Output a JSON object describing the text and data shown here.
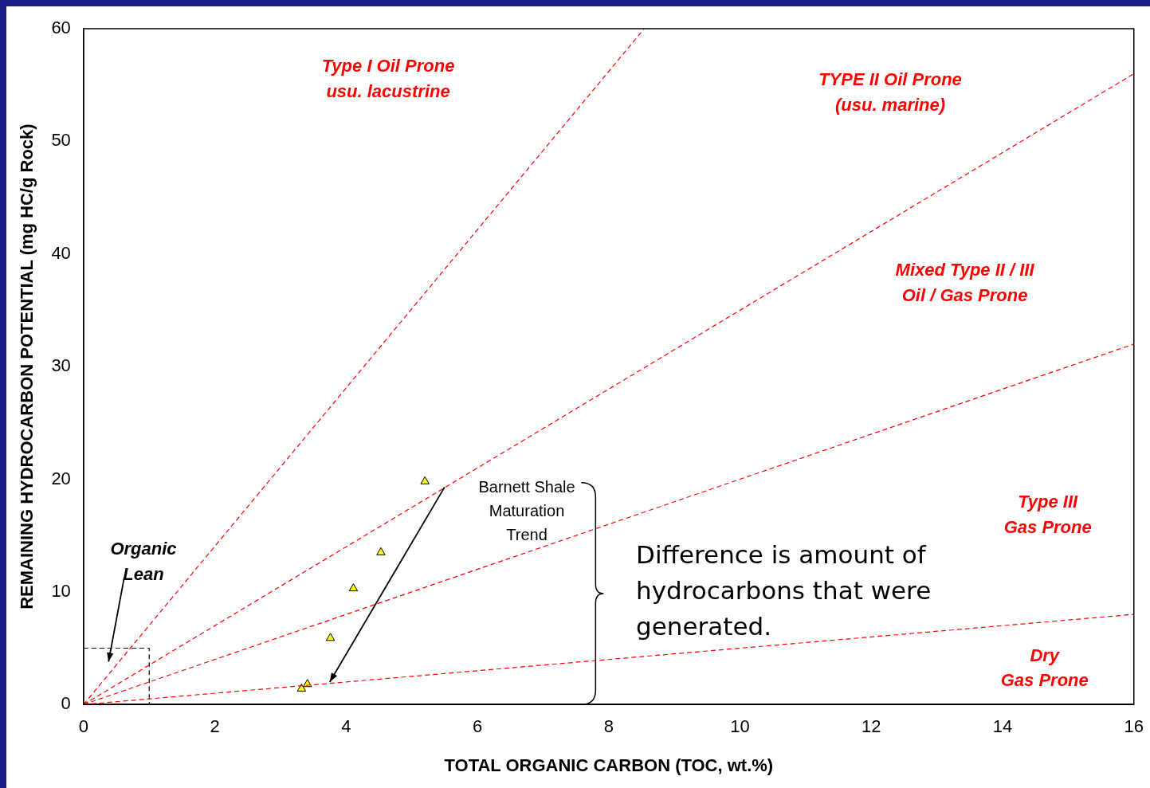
{
  "chart_data": {
    "type": "scatter",
    "xlabel": "TOTAL ORGANIC CARBON (TOC, wt.%)",
    "ylabel": "REMAINING HYDROCARBON POTENTIAL (mg HC/g Rock)",
    "xlim": [
      0,
      16
    ],
    "xticks": [
      0,
      2,
      4,
      6,
      8,
      10,
      12,
      14,
      16
    ],
    "ylim": [
      0,
      60
    ],
    "yticks": [
      0,
      10,
      20,
      30,
      40,
      50,
      60
    ],
    "grid": false,
    "legend": false,
    "series": [
      {
        "type": "line",
        "color": "#ff0000",
        "line_style": "dashed",
        "marker": "none",
        "x": [
          0,
          8.54
        ],
        "values": [
          0,
          60
        ]
      },
      {
        "type": "line",
        "color": "#ff0000",
        "line_style": "dashed",
        "marker": "none",
        "x": [
          0,
          16
        ],
        "values": [
          0,
          56
        ]
      },
      {
        "type": "line",
        "color": "#ff0000",
        "line_style": "dashed",
        "marker": "none",
        "x": [
          0,
          16
        ],
        "values": [
          0,
          32
        ]
      },
      {
        "type": "line",
        "color": "#ff0000",
        "line_style": "dashed",
        "marker": "none",
        "x": [
          0,
          16
        ],
        "values": [
          0,
          8
        ]
      },
      {
        "type": "line",
        "color": "#000000",
        "line_style": "dashed",
        "marker": "none",
        "x": [
          0,
          1,
          1
        ],
        "values": [
          5,
          5,
          0
        ]
      },
      {
        "color": "#ffff00",
        "marker": "triangle",
        "x": [
          5.2,
          4.53,
          4.11,
          3.76,
          3.41,
          3.32
        ],
        "values": [
          19.8,
          13.5,
          10.3,
          5.9,
          1.8,
          1.4
        ]
      }
    ],
    "annotations": [
      "Type I Oil Prone\nusu. lacustrine",
      "TYPE II Oil Prone\n(usu. marine)",
      "Mixed Type II / III\nOil / Gas Prone",
      "Type III\nGas Prone",
      "Dry\nGas Prone",
      "Organic\nLean",
      "Barnett Shale\nMaturation\nTrend",
      "Difference is amount of\nhydrocarbons that were\ngenerated."
    ]
  }
}
